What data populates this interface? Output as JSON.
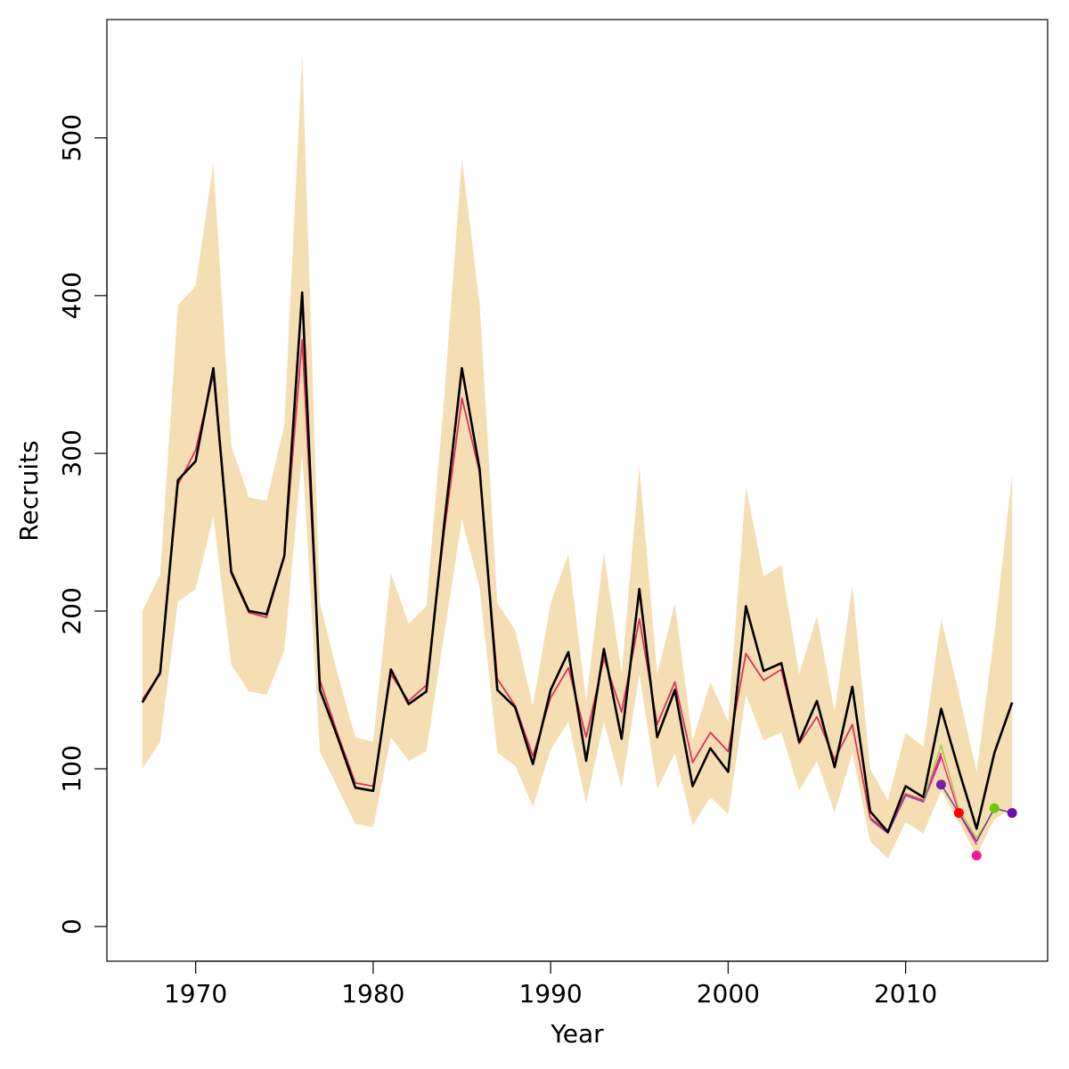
{
  "chart_data": {
    "type": "line",
    "xlabel": "Year",
    "ylabel": "Recruits",
    "xlim": [
      1965,
      2018
    ],
    "ylim": [
      -22,
      575
    ],
    "x_ticks": [
      1970,
      1980,
      1990,
      2000,
      2010
    ],
    "y_ticks": [
      0,
      100,
      200,
      300,
      400,
      500
    ],
    "grid": false,
    "legend": "none",
    "band": {
      "color": "#f5deb3",
      "x": [
        1967,
        1968,
        1969,
        1970,
        1971,
        1972,
        1973,
        1974,
        1975,
        1976,
        1977,
        1978,
        1979,
        1980,
        1981,
        1982,
        1983,
        1984,
        1985,
        1986,
        1987,
        1988,
        1989,
        1990,
        1991,
        1992,
        1993,
        1994,
        1995,
        1996,
        1997,
        1998,
        1999,
        2000,
        2001,
        2002,
        2003,
        2004,
        2005,
        2006,
        2007,
        2008,
        2009,
        2010,
        2011,
        2012,
        2013,
        2014,
        2015,
        2016
      ],
      "lower": [
        100,
        117,
        206,
        214,
        260,
        166,
        149,
        147,
        175,
        300,
        111,
        88,
        65,
        63,
        120,
        105,
        111,
        185,
        258,
        215,
        110,
        102,
        76,
        112,
        130,
        78,
        130,
        88,
        160,
        87,
        110,
        64,
        82,
        71,
        147,
        118,
        123,
        86,
        105,
        72,
        110,
        54,
        43,
        66,
        59,
        86,
        66,
        45,
        68,
        75
      ],
      "upper": [
        200,
        223,
        394,
        406,
        484,
        305,
        272,
        270,
        318,
        553,
        205,
        160,
        120,
        117,
        224,
        192,
        203,
        335,
        487,
        395,
        205,
        188,
        140,
        205,
        236,
        143,
        237,
        160,
        292,
        160,
        205,
        118,
        155,
        130,
        279,
        222,
        229,
        160,
        197,
        136,
        216,
        100,
        80,
        123,
        114,
        195,
        148,
        98,
        185,
        287
      ]
    },
    "series": [
      {
        "color": "#000000",
        "width": 2.6,
        "x": [
          1967,
          1968,
          1969,
          1970,
          1971,
          1972,
          1973,
          1974,
          1975,
          1976,
          1977,
          1978,
          1979,
          1980,
          1981,
          1982,
          1983,
          1984,
          1985,
          1986,
          1987,
          1988,
          1989,
          1990,
          1991,
          1992,
          1993,
          1994,
          1995,
          1996,
          1997,
          1998,
          1999,
          2000,
          2001,
          2002,
          2003,
          2004,
          2005,
          2006,
          2007,
          2008,
          2009,
          2010,
          2011,
          2012,
          2013,
          2014,
          2015,
          2016
        ],
        "values": [
          142,
          161,
          283,
          295,
          354,
          225,
          200,
          198,
          235,
          402,
          150,
          120,
          88,
          86,
          163,
          141,
          149,
          255,
          354,
          290,
          150,
          139,
          103,
          150,
          174,
          105,
          176,
          119,
          214,
          120,
          150,
          89,
          113,
          98,
          203,
          162,
          167,
          117,
          143,
          101,
          152,
          73,
          60,
          89,
          82,
          138,
          99,
          62,
          110,
          142
        ]
      },
      {
        "color": "#d6345a",
        "width": 1.8,
        "x": [
          1967,
          1968,
          1969,
          1970,
          1971,
          1972,
          1973,
          1974,
          1975,
          1976,
          1977,
          1978,
          1979,
          1980,
          1981,
          1982,
          1983,
          1984,
          1985,
          1986,
          1987,
          1988,
          1989,
          1990,
          1991,
          1992,
          1993,
          1994,
          1995,
          1996,
          1997,
          1998,
          1999,
          2000,
          2001,
          2002,
          2003,
          2004,
          2005,
          2006,
          2007,
          2008,
          2009,
          2010,
          2011,
          2012
        ],
        "values": [
          144,
          160,
          280,
          302,
          350,
          224,
          199,
          196,
          235,
          372,
          156,
          122,
          91,
          89,
          160,
          143,
          153,
          250,
          335,
          288,
          157,
          140,
          108,
          145,
          164,
          120,
          170,
          136,
          195,
          128,
          155,
          104,
          123,
          111,
          173,
          156,
          163,
          116,
          133,
          106,
          128,
          69,
          60,
          84,
          80,
          110
        ]
      },
      {
        "color": "#8e44ad",
        "width": 1.4,
        "x": [
          2008,
          2009,
          2010,
          2011,
          2012
        ],
        "values": [
          68,
          59,
          83,
          79,
          107
        ]
      },
      {
        "color": "#ff1493",
        "width": 1.4,
        "x": [
          2011,
          2012,
          2013,
          2014
        ],
        "values": [
          81,
          108,
          72,
          52
        ]
      },
      {
        "color": "#9acd32",
        "width": 1.4,
        "x": [
          2011,
          2012,
          2013,
          2014,
          2015
        ],
        "values": [
          80,
          115,
          74,
          56,
          74
        ]
      },
      {
        "color": "#7b2d8e",
        "width": 1.4,
        "x": [
          2012,
          2013,
          2014,
          2015,
          2016
        ],
        "values": [
          90,
          72,
          54,
          75,
          72
        ]
      }
    ],
    "points": [
      {
        "x": 2012,
        "y": 90,
        "color": "#7b1fa2"
      },
      {
        "x": 2013,
        "y": 72,
        "color": "#ff0000"
      },
      {
        "x": 2014,
        "y": 45,
        "color": "#ff1493"
      },
      {
        "x": 2015,
        "y": 75,
        "color": "#66cc00"
      },
      {
        "x": 2016,
        "y": 72,
        "color": "#6a0dad"
      }
    ]
  }
}
